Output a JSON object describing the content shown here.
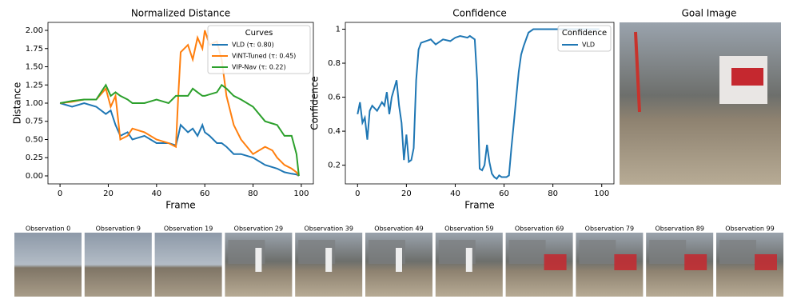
{
  "chart_data": [
    {
      "type": "line",
      "title": "Normalized Distance",
      "x_label": "Frame",
      "y_label": "Distance",
      "x": [
        0,
        5,
        10,
        15,
        19,
        21,
        23,
        25,
        28,
        30,
        35,
        40,
        45,
        48,
        49,
        50,
        53,
        55,
        57,
        59,
        60,
        62,
        65,
        67,
        69,
        72,
        75,
        80,
        85,
        88,
        90,
        93,
        96,
        98,
        99
      ],
      "series": [
        {
          "name": "VLD (τ: 0.80)",
          "color": "#1f77b4",
          "values": [
            1.0,
            0.95,
            1.0,
            0.95,
            0.85,
            0.9,
            0.7,
            0.55,
            0.6,
            0.5,
            0.55,
            0.45,
            0.45,
            0.42,
            0.55,
            0.7,
            0.6,
            0.65,
            0.55,
            0.7,
            0.6,
            0.55,
            0.45,
            0.45,
            0.4,
            0.3,
            0.3,
            0.25,
            0.15,
            0.12,
            0.1,
            0.05,
            0.03,
            0.02,
            0.0
          ]
        },
        {
          "name": "ViNT-Tuned (τ: 0.45)",
          "color": "#ff7f0e",
          "values": [
            1.0,
            1.02,
            1.05,
            1.05,
            1.2,
            0.95,
            1.1,
            0.5,
            0.55,
            0.65,
            0.6,
            0.5,
            0.45,
            0.4,
            1.1,
            1.7,
            1.8,
            1.6,
            1.9,
            1.75,
            2.0,
            1.8,
            1.85,
            1.6,
            1.1,
            0.7,
            0.5,
            0.3,
            0.4,
            0.35,
            0.25,
            0.15,
            0.1,
            0.05,
            0.0
          ]
        },
        {
          "name": "VIP-Nav (τ: 0.22)",
          "color": "#2ca02c",
          "values": [
            1.0,
            1.03,
            1.05,
            1.05,
            1.25,
            1.1,
            1.15,
            1.1,
            1.05,
            1.0,
            1.0,
            1.05,
            1.0,
            1.1,
            1.1,
            1.1,
            1.1,
            1.2,
            1.15,
            1.1,
            1.1,
            1.12,
            1.15,
            1.25,
            1.2,
            1.1,
            1.05,
            0.95,
            0.75,
            0.72,
            0.7,
            0.55,
            0.55,
            0.3,
            0.0
          ]
        }
      ],
      "legend_title": "Curves",
      "legend": "upper right",
      "xlim": [
        -5,
        105
      ],
      "xticks": [
        0,
        20,
        40,
        60,
        80,
        100
      ],
      "ylim": [
        -0.11,
        2.11
      ],
      "yticks": [
        {
          "value": 0,
          "label": "0.00"
        },
        {
          "value": 0.25,
          "label": "0.25"
        },
        {
          "value": 0.5,
          "label": "0.50"
        },
        {
          "value": 0.75,
          "label": "0.75"
        },
        {
          "value": 1,
          "label": "1.00"
        },
        {
          "value": 1.25,
          "label": "1.25"
        },
        {
          "value": 1.5,
          "label": "1.50"
        },
        {
          "value": 1.75,
          "label": "1.75"
        },
        {
          "value": 2,
          "label": "2.00"
        }
      ]
    },
    {
      "type": "line",
      "title": "Confidence",
      "x_label": "Frame",
      "y_label": "Confidence",
      "x": [
        0,
        1,
        2,
        3,
        4,
        5,
        6,
        8,
        10,
        11,
        12,
        13,
        14,
        15,
        16,
        17,
        18,
        19,
        20,
        21,
        22,
        23,
        24,
        25,
        26,
        28,
        30,
        32,
        35,
        38,
        40,
        42,
        45,
        46,
        48,
        49,
        50,
        51,
        52,
        53,
        54,
        55,
        56,
        57,
        58,
        59,
        60,
        61,
        62,
        63,
        64,
        65,
        66,
        67,
        68,
        70,
        72,
        75,
        80,
        85,
        90,
        95,
        99
      ],
      "series": [
        {
          "name": "VLD",
          "color": "#1f77b4",
          "values": [
            0.5,
            0.57,
            0.45,
            0.48,
            0.35,
            0.52,
            0.55,
            0.52,
            0.57,
            0.55,
            0.63,
            0.5,
            0.6,
            0.65,
            0.7,
            0.55,
            0.45,
            0.23,
            0.38,
            0.22,
            0.23,
            0.3,
            0.7,
            0.88,
            0.92,
            0.93,
            0.94,
            0.91,
            0.94,
            0.93,
            0.95,
            0.96,
            0.95,
            0.96,
            0.94,
            0.7,
            0.18,
            0.17,
            0.2,
            0.32,
            0.22,
            0.15,
            0.13,
            0.12,
            0.14,
            0.13,
            0.13,
            0.13,
            0.14,
            0.3,
            0.45,
            0.6,
            0.75,
            0.85,
            0.9,
            0.98,
            1.0,
            1.0,
            1.0,
            1.0,
            1.0,
            1.0,
            1.0
          ]
        }
      ],
      "legend_title": "Confidence",
      "legend": "upper right",
      "xlim": [
        -5,
        105
      ],
      "xticks": [
        0,
        20,
        40,
        60,
        80,
        100
      ],
      "ylim": [
        0.09,
        1.04
      ],
      "yticks": [
        0.2,
        0.4,
        0.6,
        0.8,
        1.0
      ]
    }
  ],
  "images": {
    "goal_title": "Goal Image",
    "observations": [
      "Observation 0",
      "Observation 9",
      "Observation 19",
      "Observation 29",
      "Observation 39",
      "Observation 49",
      "Observation 59",
      "Observation 69",
      "Observation 79",
      "Observation 89",
      "Observation 99"
    ]
  }
}
